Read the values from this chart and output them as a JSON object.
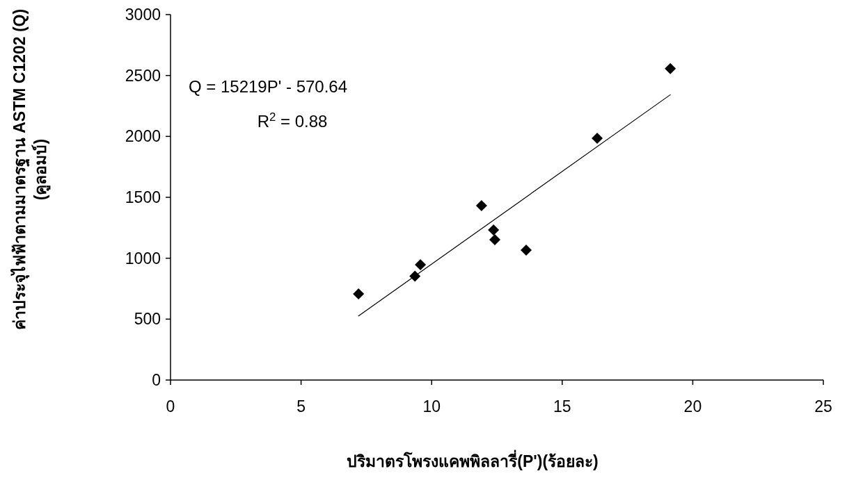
{
  "chart_data": {
    "type": "scatter",
    "xlabel": "ปริมาตรโพรงแคพพิลลารี่(P')(ร้อยละ)",
    "ylabel": "ค่าประจุไฟฟ้าตามมาตรฐาน ASTM C1202 (Q) (คูลอมบ์)",
    "xlim": [
      0,
      25
    ],
    "ylim": [
      0,
      3000
    ],
    "xticks": [
      0,
      5,
      10,
      15,
      20,
      25
    ],
    "yticks": [
      0,
      500,
      1000,
      1500,
      2000,
      2500,
      3000
    ],
    "grid": false,
    "annotations": [
      "Q = 15219P' - 570.64",
      "R$^{2}$ = 0.88"
    ],
    "series": [
      {
        "color": "#000000",
        "marker": "diamond",
        "x": [
          7.2,
          9.36,
          9.57,
          11.91,
          12.37,
          12.42,
          13.62,
          16.34,
          19.14
        ],
        "values": [
          707,
          853,
          947,
          1432,
          1232,
          1152,
          1067,
          1985,
          2556
        ]
      },
      {
        "type": "line",
        "color": "#000000",
        "line_style": "solid",
        "marker": "none",
        "x": [
          7.2,
          19.14
        ],
        "values": [
          526,
          2342
        ]
      }
    ]
  }
}
